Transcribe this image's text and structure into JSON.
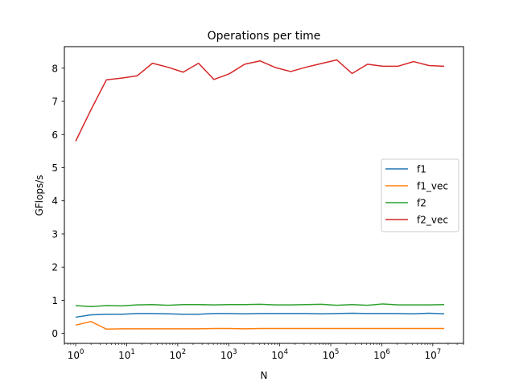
{
  "chart_data": {
    "type": "line",
    "title": "Operations per time",
    "xlabel": "N",
    "ylabel": "GFlops/s",
    "x_scale": "log",
    "xlim": [
      0.6,
      40000000
    ],
    "ylim": [
      -0.3,
      8.65
    ],
    "grid": false,
    "legend_position": "center-right",
    "x_ticks": [
      {
        "value": 1,
        "base": "10",
        "exp": "0"
      },
      {
        "value": 10,
        "base": "10",
        "exp": "1"
      },
      {
        "value": 100,
        "base": "10",
        "exp": "2"
      },
      {
        "value": 1000,
        "base": "10",
        "exp": "3"
      },
      {
        "value": 10000,
        "base": "10",
        "exp": "4"
      },
      {
        "value": 100000,
        "base": "10",
        "exp": "5"
      },
      {
        "value": 1000000,
        "base": "10",
        "exp": "6"
      },
      {
        "value": 10000000,
        "base": "10",
        "exp": "7"
      }
    ],
    "y_ticks": [
      0,
      1,
      2,
      3,
      4,
      5,
      6,
      7,
      8
    ],
    "x": [
      1,
      2,
      4,
      8,
      16,
      32,
      64,
      128,
      256,
      512,
      1024,
      2048,
      4096,
      8192,
      16384,
      32768,
      65536,
      131072,
      262144,
      524288,
      1048576,
      2097152,
      4194304,
      8388608,
      16777216
    ],
    "series": [
      {
        "name": "f1",
        "color": "#1f77b4",
        "values": [
          0.49,
          0.56,
          0.58,
          0.58,
          0.6,
          0.6,
          0.59,
          0.58,
          0.58,
          0.6,
          0.6,
          0.59,
          0.6,
          0.6,
          0.6,
          0.6,
          0.59,
          0.6,
          0.61,
          0.6,
          0.6,
          0.6,
          0.59,
          0.61,
          0.59
        ]
      },
      {
        "name": "f1_vec",
        "color": "#ff7f0e",
        "values": [
          0.25,
          0.36,
          0.13,
          0.14,
          0.14,
          0.14,
          0.14,
          0.14,
          0.14,
          0.15,
          0.15,
          0.14,
          0.15,
          0.15,
          0.15,
          0.15,
          0.15,
          0.15,
          0.15,
          0.15,
          0.15,
          0.15,
          0.15,
          0.15,
          0.15
        ]
      },
      {
        "name": "f2",
        "color": "#2ca02c",
        "values": [
          0.84,
          0.81,
          0.84,
          0.83,
          0.86,
          0.87,
          0.85,
          0.87,
          0.87,
          0.86,
          0.87,
          0.87,
          0.88,
          0.86,
          0.86,
          0.87,
          0.88,
          0.85,
          0.87,
          0.85,
          0.89,
          0.86,
          0.86,
          0.86,
          0.87
        ]
      },
      {
        "name": "f2_vec",
        "color": "#d62728",
        "values": [
          5.8,
          6.75,
          7.65,
          7.7,
          7.77,
          8.15,
          8.03,
          7.88,
          8.15,
          7.66,
          7.83,
          8.12,
          8.22,
          8.02,
          7.9,
          8.03,
          8.14,
          8.25,
          7.84,
          8.12,
          8.06,
          8.06,
          8.2,
          8.08,
          8.06
        ]
      }
    ]
  }
}
